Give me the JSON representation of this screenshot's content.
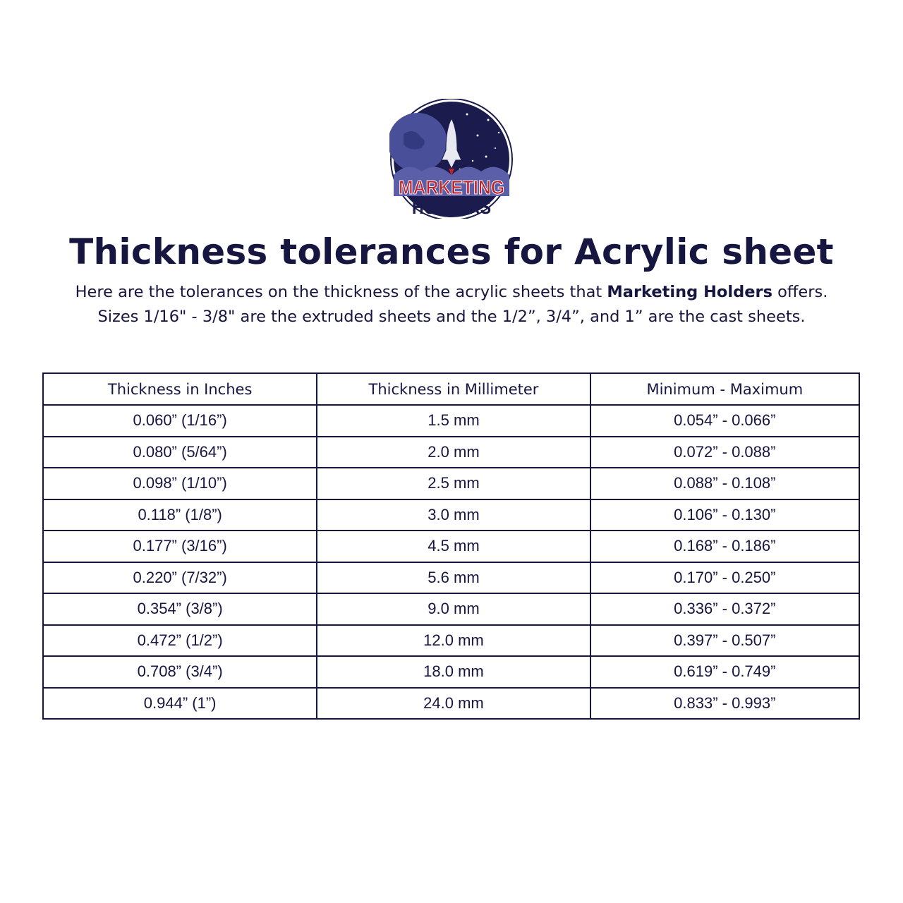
{
  "logo": {
    "line1": "MARKETING",
    "line2": "HOLDERS",
    "colors": {
      "navy": "#1b1b4e",
      "red": "#c0202a",
      "planet": "#4a4f9a"
    }
  },
  "title": "Thickness tolerances for Acrylic sheet",
  "intro": {
    "line1_before": "Here are the tolerances on the thickness of the acrylic sheets that ",
    "line1_bold": "Marketing Holders",
    "line1_after": " offers.",
    "line2": "Sizes 1/16\" - 3/8\" are the extruded sheets and the 1/2”, 3/4”, and 1” are the cast sheets."
  },
  "table": {
    "headers": [
      "Thickness in Inches",
      "Thickness in Millimeter",
      "Minimum - Maximum"
    ],
    "rows": [
      [
        "0.060” (1/16”)",
        "1.5 mm",
        "0.054” - 0.066”"
      ],
      [
        "0.080” (5/64”)",
        "2.0 mm",
        "0.072” - 0.088”"
      ],
      [
        "0.098” (1/10”)",
        "2.5 mm",
        "0.088” - 0.108”"
      ],
      [
        "0.118” (1/8”)",
        "3.0 mm",
        "0.106” - 0.130”"
      ],
      [
        "0.177” (3/16”)",
        "4.5 mm",
        "0.168” - 0.186”"
      ],
      [
        "0.220” (7/32”)",
        "5.6 mm",
        "0.170” - 0.250”"
      ],
      [
        "0.354” (3/8”)",
        "9.0 mm",
        "0.336” - 0.372”"
      ],
      [
        "0.472” (1/2”)",
        "12.0 mm",
        "0.397” - 0.507”"
      ],
      [
        "0.708” (3/4”)",
        "18.0 mm",
        "0.619” - 0.749”"
      ],
      [
        "0.944” (1”)",
        "24.0 mm",
        "0.833” - 0.993”"
      ]
    ]
  }
}
